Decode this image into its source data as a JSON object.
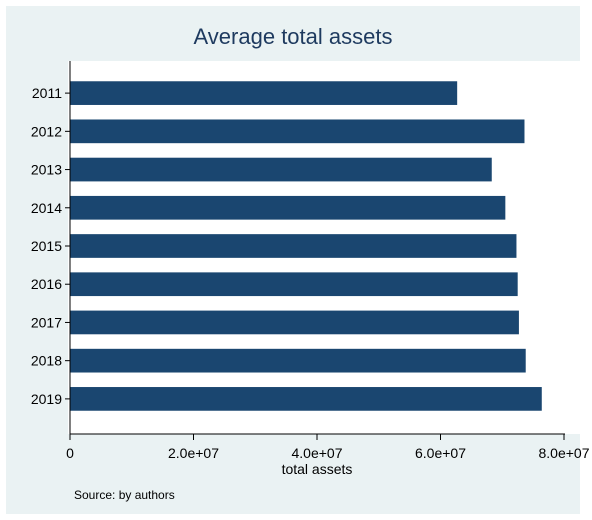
{
  "title": "Average total assets",
  "source_note": "Source: by authors",
  "colors": {
    "bar": "#1a4670",
    "plot_bg": "#ffffff",
    "figure_bg": "#eaf2f3"
  },
  "chart_data": {
    "type": "bar",
    "orientation": "horizontal",
    "title": "Average total assets",
    "xlabel": "total assets",
    "ylabel": "",
    "categories": [
      "2011",
      "2012",
      "2013",
      "2014",
      "2015",
      "2016",
      "2017",
      "2018",
      "2019"
    ],
    "values": [
      62700000,
      73600000,
      68300000,
      70500000,
      72300000,
      72500000,
      72700000,
      73800000,
      76400000
    ],
    "xlim": [
      0,
      80000000
    ],
    "xticks": [
      0,
      20000000,
      40000000,
      60000000,
      80000000
    ],
    "xtick_labels": [
      "0",
      "2.0e+07",
      "4.0e+07",
      "6.0e+07",
      "8.0e+07"
    ],
    "grid": false,
    "legend": "none"
  }
}
